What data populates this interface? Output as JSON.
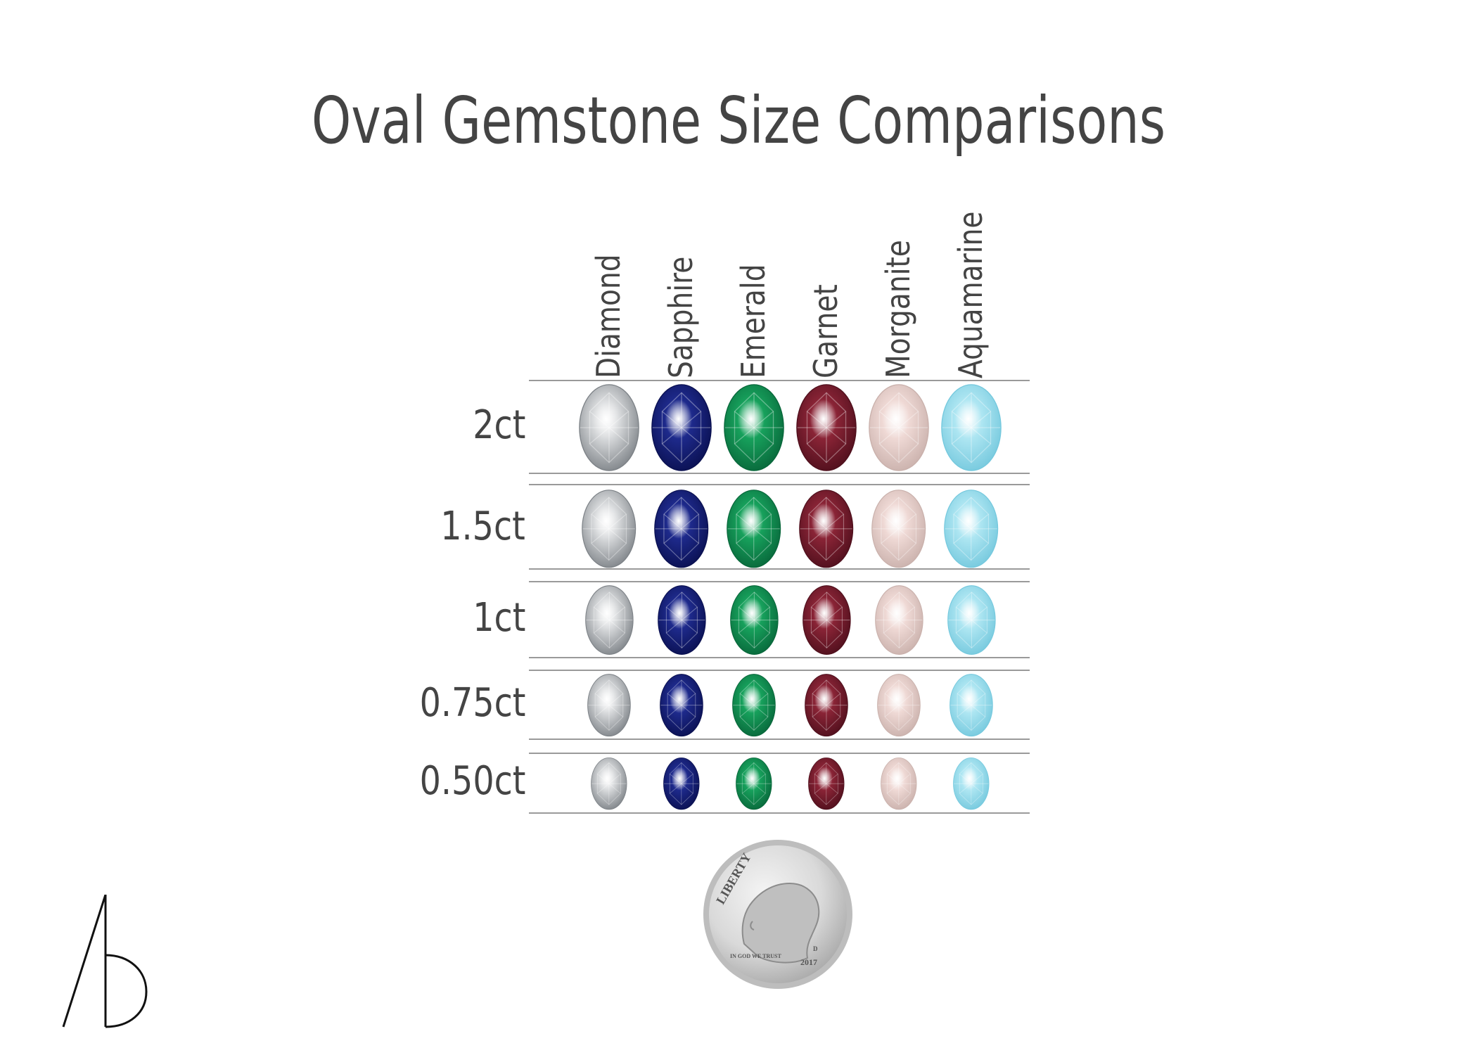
{
  "title": "Oval Gemstone Size Comparisons",
  "gemstones": [
    {
      "name": "Diamond",
      "color": "#d8dadc",
      "dark": "#7c8186"
    },
    {
      "name": "Sapphire",
      "color": "#1e2a8c",
      "dark": "#0a1050"
    },
    {
      "name": "Emerald",
      "color": "#17a15c",
      "dark": "#08663a"
    },
    {
      "name": "Garnet",
      "color": "#8a2436",
      "dark": "#4e0f1c"
    },
    {
      "name": "Morganite",
      "color": "#efd9d5",
      "dark": "#c9b0ab"
    },
    {
      "name": "Aquamarine",
      "color": "#aee6f2",
      "dark": "#74c8dd"
    }
  ],
  "sizes": [
    {
      "label": "2ct",
      "scale": 1.0
    },
    {
      "label": "1.5ct",
      "scale": 0.9
    },
    {
      "label": "1ct",
      "scale": 0.8
    },
    {
      "label": "0.75ct",
      "scale": 0.72
    },
    {
      "label": "0.50ct",
      "scale": 0.6
    }
  ],
  "coin": {
    "inscription": "LIBERTY",
    "motto": "IN GOD WE TRUST",
    "year": "2017",
    "mint_mark": "D"
  }
}
